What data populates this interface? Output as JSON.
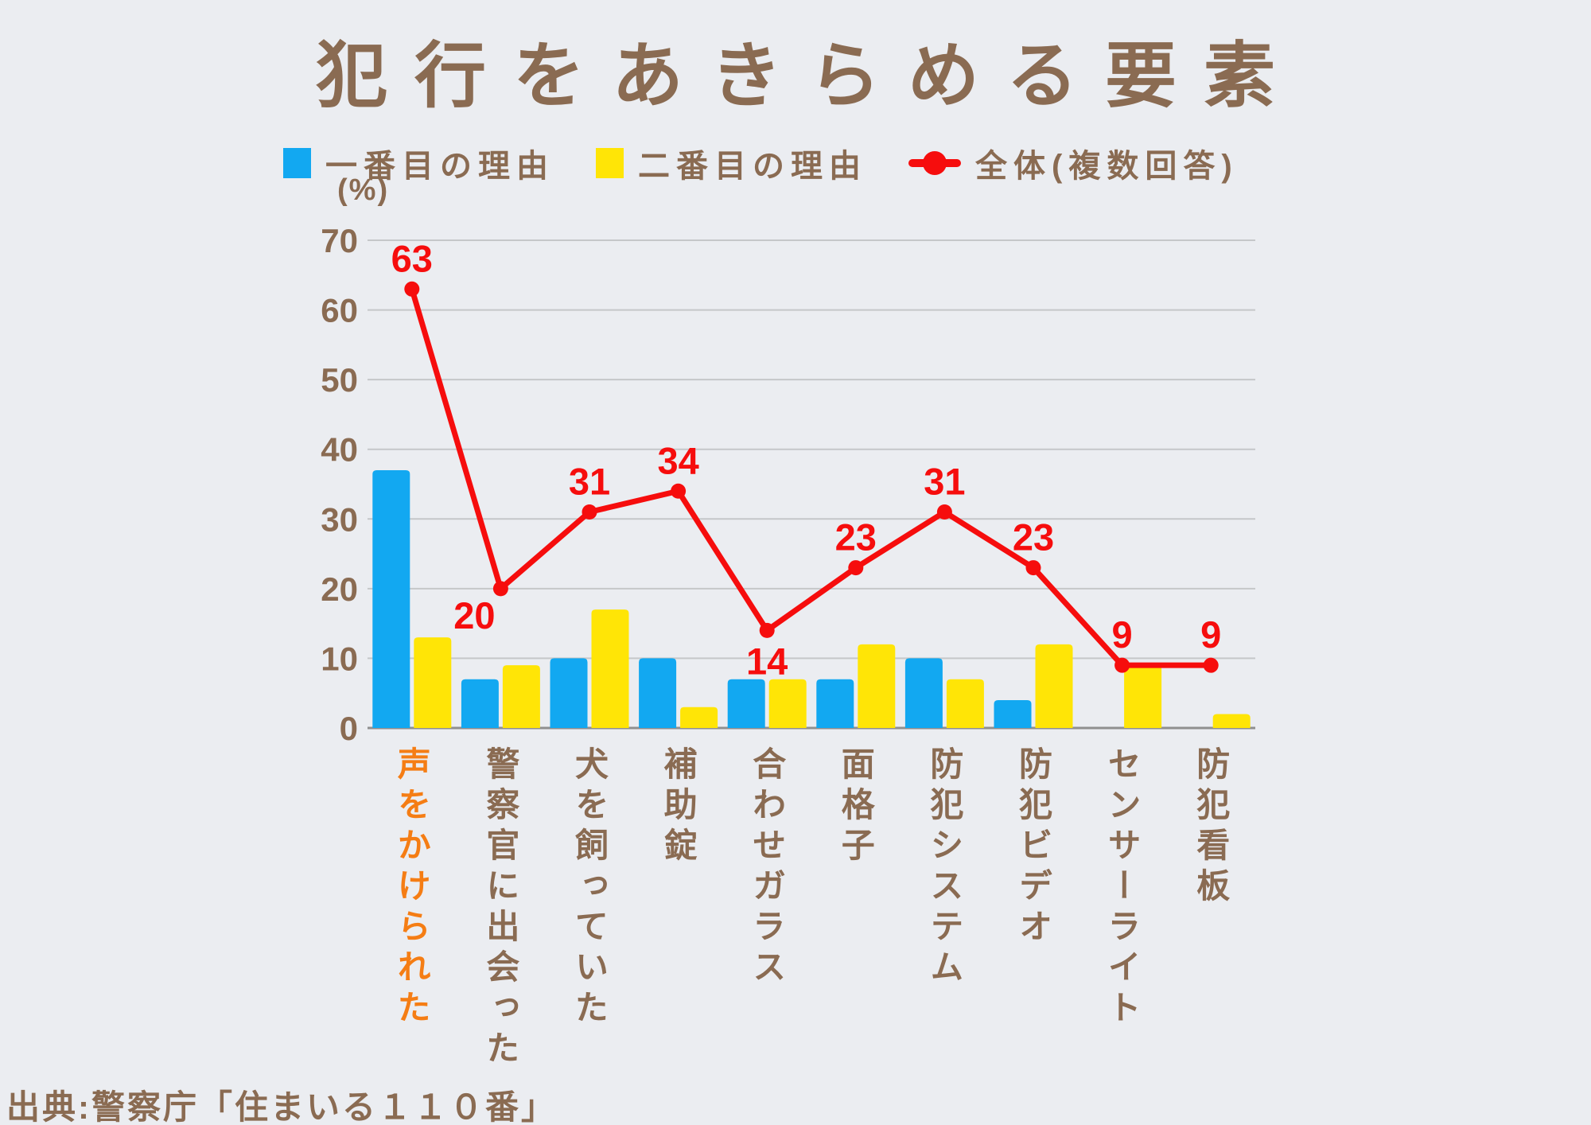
{
  "title": "犯行をあきらめる要素",
  "y_axis_unit": "(%)",
  "source": "出典:警察庁「住まいる１１０番」",
  "legend": {
    "first_reason": "一番目の理由",
    "second_reason": "二番目の理由",
    "overall": "全体(複数回答)"
  },
  "colors": {
    "background": "#ebedf1",
    "text_brown": "#8a6b52",
    "first_reason_blue": "#12a8f1",
    "second_reason_yellow": "#ffe506",
    "overall_red": "#f60d0d",
    "highlight_orange": "#f57d14",
    "gridline": "#c5c7c9",
    "baseline": "#8f8f8f"
  },
  "chart_data": {
    "type": "bar+line",
    "title": "犯行をあきらめる要素",
    "ylabel": "(%)",
    "ylim": [
      0,
      70
    ],
    "ytick_step": 10,
    "grid": true,
    "legend_position": "top",
    "categories": [
      "声をかけられた",
      "警察官に出会った",
      "犬を飼っていた",
      "補助錠",
      "合わせガラス",
      "面格子",
      "防犯システム",
      "防犯ビデオ",
      "センサーライト",
      "防犯看板"
    ],
    "highlight_category_index": 0,
    "series": [
      {
        "name": "一番目の理由",
        "type": "bar",
        "color_key": "first_reason_blue",
        "values": [
          37,
          7,
          10,
          10,
          7,
          7,
          10,
          4,
          0,
          0
        ]
      },
      {
        "name": "二番目の理由",
        "type": "bar",
        "color_key": "second_reason_yellow",
        "values": [
          13,
          9,
          17,
          3,
          7,
          12,
          7,
          12,
          9,
          2
        ]
      },
      {
        "name": "全体(複数回答)",
        "type": "line",
        "color_key": "overall_red",
        "values": [
          63,
          20,
          31,
          34,
          14,
          23,
          31,
          23,
          9,
          9
        ],
        "show_value_labels": true,
        "label_placement": [
          "above",
          "below-left",
          "above",
          "above",
          "below",
          "above",
          "above",
          "above",
          "above",
          "above"
        ]
      }
    ]
  }
}
